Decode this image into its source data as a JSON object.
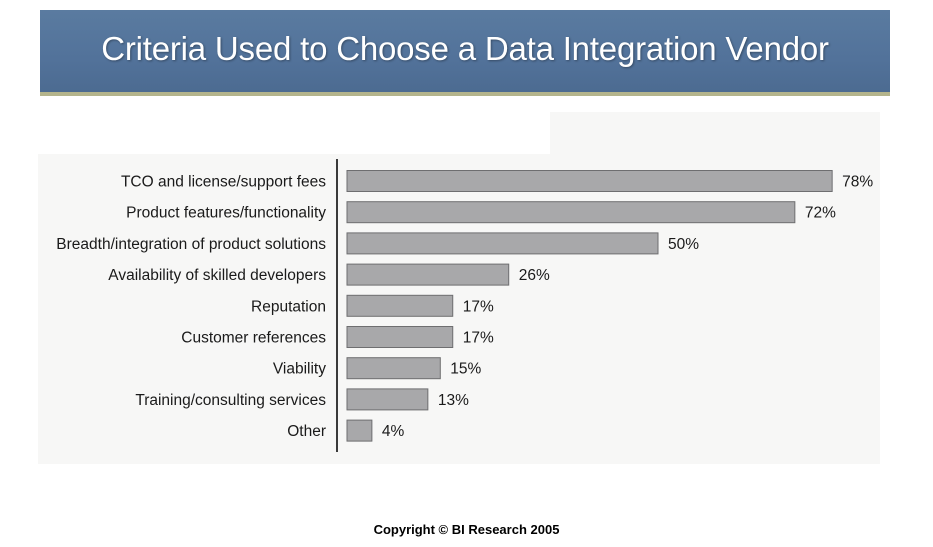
{
  "header": {
    "title": "Criteria Used to Choose a Data Integration Vendor"
  },
  "footer": {
    "copyright": "Copyright © BI Research 2005"
  },
  "colors": {
    "title_bar": "#52729a",
    "title_underline": "#b4b48c",
    "bar_fill": "#a8a8aa",
    "bar_stroke": "#6e6e70",
    "chart_background": "#f7f7f6"
  },
  "chart_data": {
    "type": "bar",
    "orientation": "horizontal",
    "title": "",
    "xlabel": "",
    "ylabel": "",
    "value_suffix": "%",
    "xlim": [
      0,
      100
    ],
    "grid": false,
    "categories": [
      "TCO and license/support fees",
      "Product features/functionality",
      "Breadth/integration of product solutions",
      "Availability of skilled developers",
      "Reputation",
      "Customer references",
      "Viability",
      "Training/consulting services",
      "Other"
    ],
    "values": [
      78,
      72,
      50,
      26,
      17,
      17,
      15,
      13,
      4
    ],
    "data_labels": [
      "78%",
      "72%",
      "50%",
      "26%",
      "17%",
      "17%",
      "15%",
      "13%",
      "4%"
    ]
  }
}
